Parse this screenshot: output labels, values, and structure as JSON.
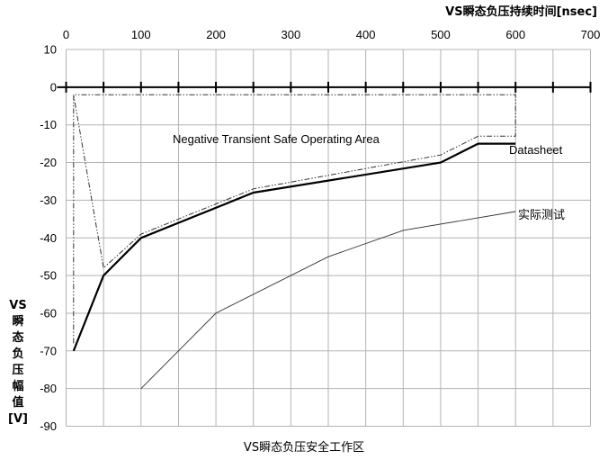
{
  "chart_data": {
    "type": "line",
    "title": "VS瞬态负压安全工作区",
    "xlabel": "VS瞬态负压持续时间[nsec]",
    "ylabel_lines": [
      "VS",
      "瞬",
      "态",
      "负",
      "压",
      "幅",
      "值",
      "[V]"
    ],
    "annotation": "Negative Transient Safe Operating Area",
    "xlim": [
      0,
      700
    ],
    "ylim": [
      -90,
      10
    ],
    "x_ticks": [
      0,
      100,
      200,
      300,
      400,
      500,
      600,
      700
    ],
    "y_ticks": [
      10,
      0,
      -10,
      -20,
      -30,
      -40,
      -50,
      -60,
      -70,
      -80,
      -90
    ],
    "x_gridlines": [
      0,
      50,
      100,
      150,
      200,
      250,
      300,
      350,
      400,
      450,
      500,
      550,
      600,
      650,
      700
    ],
    "x_axis_position": "top",
    "grid": true,
    "series": [
      {
        "name": "Datasheet",
        "style": "thick-solid",
        "color": "#000000",
        "x": [
          10,
          50,
          100,
          250,
          500,
          550,
          600
        ],
        "y": [
          -70,
          -50,
          -40,
          -28,
          -20,
          -15,
          -15
        ]
      },
      {
        "name": "实际测试",
        "style": "thin-solid",
        "color": "#333333",
        "x": [
          100,
          200,
          350,
          450,
          600
        ],
        "y": [
          -80,
          -60,
          -45,
          -38,
          -33
        ]
      },
      {
        "name": "",
        "style": "dash-dot",
        "color": "#333333",
        "x": [
          10,
          10,
          50,
          100,
          250,
          500,
          550,
          600,
          600,
          10
        ],
        "y": [
          -68,
          -2,
          -48,
          -39,
          -27,
          -18,
          -13,
          -13,
          -2,
          -2
        ]
      }
    ]
  }
}
